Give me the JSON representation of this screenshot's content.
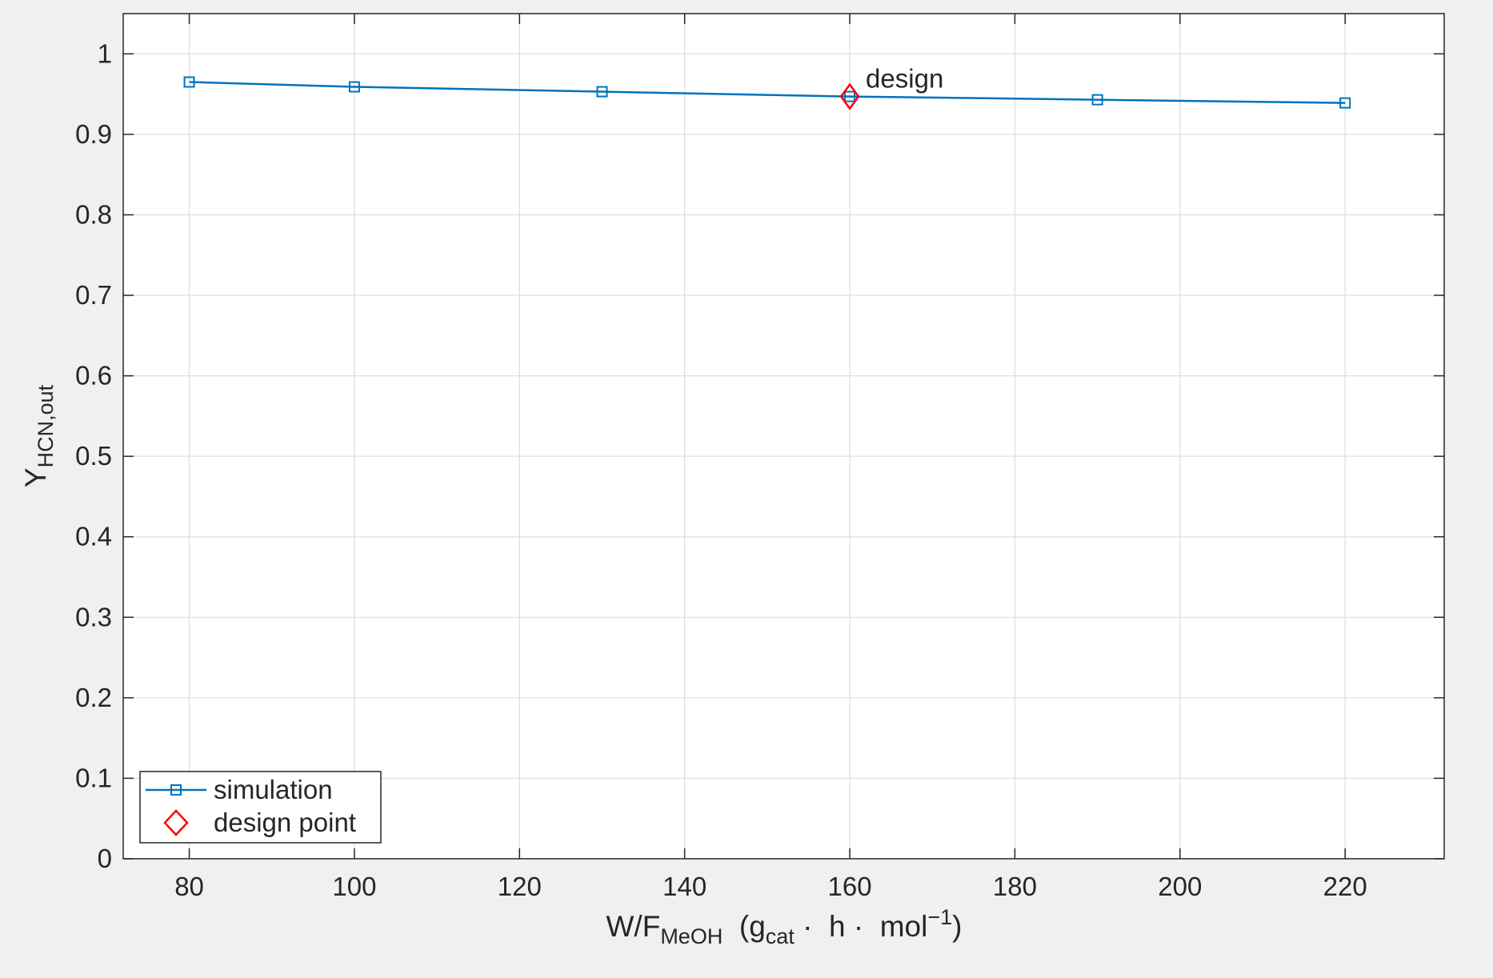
{
  "chart_data": {
    "type": "line",
    "x": [
      80,
      100,
      130,
      160,
      190,
      220
    ],
    "series": [
      {
        "name": "simulation",
        "values": [
          0.965,
          0.959,
          0.953,
          0.947,
          0.943,
          0.939
        ],
        "color": "#0072bd",
        "marker": "square"
      }
    ],
    "points": [
      {
        "name": "design point",
        "x": 160,
        "y": 0.947,
        "color": "#ff0000",
        "marker": "diamond"
      }
    ],
    "annotations": [
      {
        "text": "design",
        "x": 160,
        "y": 0.947
      }
    ],
    "xlabel": {
      "main": "W/F",
      "main_sub": "MeOH",
      "open": "  (g",
      "unit_sub": "cat",
      "middle": " ·  h ·  mol",
      "unit_sup": "−1",
      "close": ")"
    },
    "ylabel": {
      "main": "Y",
      "sub": "HCN,out"
    },
    "xlim": [
      72,
      232
    ],
    "ylim": [
      0,
      1.05
    ],
    "xticks": [
      80,
      100,
      120,
      140,
      160,
      180,
      200,
      220
    ],
    "xtick_labels": [
      "80",
      "100",
      "120",
      "140",
      "160",
      "180",
      "200",
      "220"
    ],
    "yticks": [
      0,
      0.1,
      0.2,
      0.3,
      0.4,
      0.5,
      0.6,
      0.7,
      0.8,
      0.9,
      1
    ],
    "ytick_labels": [
      "0",
      "0.1",
      "0.2",
      "0.3",
      "0.4",
      "0.5",
      "0.6",
      "0.7",
      "0.8",
      "0.9",
      "1"
    ],
    "grid": true,
    "box": true,
    "legend_position": "bottom-left"
  },
  "colors": {
    "figure_bg": "#f0f0f0",
    "axes_bg": "#ffffff",
    "grid": "#dfdfdf",
    "axis": "#262626"
  }
}
